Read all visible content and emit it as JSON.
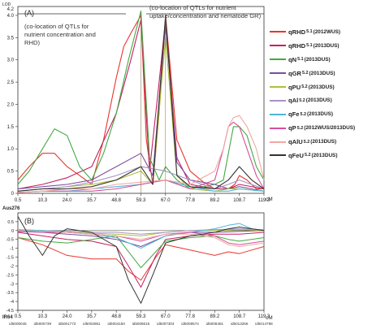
{
  "figure": {
    "panel_a_label": "(A)",
    "panel_b_label": "(B)",
    "annotation_left": [
      "(co-location of QTLs for",
      "nutrient concentration and",
      "RHD)"
    ],
    "annotation_right": [
      "(co-location of QTLs for nutrient",
      "uptake/concentration and nematode GR)"
    ],
    "top_y_label": "LOD",
    "bottom_y_label": "Aus276",
    "bottom_x_label": "IR64",
    "x_unit": "cM"
  },
  "legend": [
    {
      "base": "qRHD",
      "sub": "5.1",
      "year": "(2012WUS)",
      "color": "#e8352f"
    },
    {
      "base": "qRHD",
      "sub": "5.1",
      "year": "(2013DUS)",
      "color": "#c62060"
    },
    {
      "base": "qN",
      "sub": "5.1",
      "year": "(2013DUS)",
      "color": "#43a843"
    },
    {
      "base": "qGR",
      "sub": "5.2",
      "year": "(2013DUS)",
      "color": "#7b4f9d"
    },
    {
      "base": "qPU",
      "sub": "5.2",
      "year": "(2013DUS)",
      "color": "#a9c23a"
    },
    {
      "base": "qAl",
      "sub": "5.2",
      "year": "(2013DUS)",
      "color": "#a693c7"
    },
    {
      "base": "qFe",
      "sub": "5.2",
      "year": "(2013DUS)",
      "color": "#4ab7d6"
    },
    {
      "base": "qP",
      "sub": "5.2",
      "year": "(2012WUS/2013DUS)",
      "color": "#d84d9a"
    },
    {
      "base": "qAlU",
      "sub": "5.2",
      "year": "(2013DUS)",
      "color": "#f0a8a0"
    },
    {
      "base": "qFeU",
      "sub": "5.2",
      "year": "(2013DUS)",
      "color": "#333333"
    }
  ],
  "chart_data": [
    {
      "type": "line",
      "title": "(A)",
      "ylabel": "LOD",
      "xlabel": "cM",
      "xlim": [
        0.5,
        119.3
      ],
      "ylim": [
        0,
        4.2
      ],
      "x_ticks": [
        "0.5",
        "10.3",
        "24.0",
        "35.7",
        "48.8",
        "59.3",
        "67.0",
        "77.8",
        "89.2",
        "108.7",
        "119.3"
      ],
      "y_ticks": [
        "0",
        "0.5",
        "1.0",
        "1.5",
        "2.0",
        "2.5",
        "3.0",
        "3.5",
        "4.0"
      ],
      "y_top_label": "4.2",
      "series": [
        {
          "name": "qRHD 5.1 (2012WUS)",
          "color": "#e8352f",
          "x": [
            0.5,
            5,
            10.3,
            17,
            24,
            30,
            35.7,
            42,
            48.8,
            52,
            55,
            59.3,
            61,
            63,
            65,
            67,
            72,
            77.8,
            84,
            89.2,
            95,
            100,
            105,
            108.7,
            112,
            116,
            119.3
          ],
          "y": [
            0.3,
            0.6,
            0.9,
            0.9,
            0.6,
            0.4,
            0.2,
            1.2,
            2.6,
            3.3,
            3.6,
            4.0,
            1.2,
            0.2,
            1.8,
            4.0,
            1.2,
            0.5,
            0.25,
            0.1,
            0.15,
            0.1,
            0.2,
            0.4,
            0.3,
            0.1,
            0.1
          ]
        },
        {
          "name": "qRHD 5.1 (2013DUS)",
          "color": "#c62060",
          "x": [
            0.5,
            10.3,
            24,
            35.7,
            48.8,
            55,
            59.3,
            62,
            65,
            67,
            72,
            77.8,
            89.2,
            100,
            108.7,
            119.3
          ],
          "y": [
            0.1,
            0.2,
            0.35,
            0.6,
            1.8,
            3.0,
            3.9,
            0.5,
            2.5,
            3.9,
            0.8,
            0.2,
            0.1,
            0.1,
            0.2,
            0.1
          ]
        },
        {
          "name": "qN 5.1 (2013DUS)",
          "color": "#43a843",
          "x": [
            0.5,
            5,
            10.3,
            17,
            24,
            30,
            35.7,
            42,
            48.8,
            54,
            59.3,
            62,
            65,
            67,
            72,
            77.8,
            84,
            89.2,
            96,
            100,
            104,
            108.7,
            112,
            116,
            119.3
          ],
          "y": [
            0.2,
            0.5,
            1.0,
            1.45,
            1.3,
            0.6,
            0.3,
            0.9,
            1.8,
            3.0,
            4.1,
            0.8,
            0.3,
            0.6,
            0.3,
            0.1,
            0.15,
            0.2,
            0.3,
            0.9,
            1.5,
            1.5,
            1.3,
            0.6,
            0.3
          ]
        },
        {
          "name": "qGR 5.2 (2013DUS)",
          "color": "#7b4f9d",
          "x": [
            0.5,
            10.3,
            24,
            35.7,
            48.8,
            59.3,
            63,
            67,
            72,
            77.8,
            89.2,
            100,
            108.7,
            114,
            119.3
          ],
          "y": [
            0.1,
            0.15,
            0.2,
            0.3,
            0.6,
            0.9,
            0.4,
            3.8,
            0.7,
            0.3,
            0.2,
            0.1,
            0.15,
            0.1,
            0.05
          ]
        },
        {
          "name": "qPU 5.2 (2013DUS)",
          "color": "#a9c23a",
          "x": [
            0.5,
            10.3,
            24,
            35.7,
            48.8,
            59.3,
            63,
            67,
            72,
            77.8,
            89.2,
            100,
            108.7,
            119.3
          ],
          "y": [
            0.05,
            0.1,
            0.15,
            0.2,
            0.3,
            0.5,
            0.2,
            3.5,
            0.4,
            0.1,
            0.05,
            0.1,
            0.1,
            0.05
          ]
        },
        {
          "name": "qAl 5.2 (2013DUS)",
          "color": "#a693c7",
          "x": [
            0.5,
            10.3,
            24,
            35.7,
            48.8,
            59.3,
            67,
            77.8,
            89.2,
            100,
            108.7,
            119.3
          ],
          "y": [
            0.05,
            0.1,
            0.15,
            0.25,
            0.4,
            0.6,
            0.5,
            0.3,
            0.1,
            0.2,
            0.3,
            0.1
          ]
        },
        {
          "name": "qFe 5.2 (2013DUS)",
          "color": "#4ab7d6",
          "x": [
            0.5,
            10.3,
            24,
            35.7,
            48.8,
            59.3,
            67,
            77.8,
            89.2,
            100,
            108.7,
            119.3
          ],
          "y": [
            0.02,
            0.05,
            0.05,
            0.1,
            0.15,
            0.2,
            0.3,
            0.15,
            0.05,
            0.05,
            0.1,
            0.05
          ]
        },
        {
          "name": "qP 5.2 (2012WUS/2013DUS)",
          "color": "#d84d9a",
          "x": [
            0.5,
            10.3,
            24,
            35.7,
            48.8,
            59.3,
            67,
            77.8,
            89.2,
            96,
            100,
            104,
            108.7,
            112,
            116,
            119.3
          ],
          "y": [
            0.02,
            0.05,
            0.05,
            0.05,
            0.1,
            0.2,
            0.3,
            0.1,
            0.3,
            1.0,
            1.5,
            1.6,
            1.5,
            1.0,
            0.4,
            0.1
          ]
        },
        {
          "name": "qAlU 5.2 (2013DUS)",
          "color": "#f0a8a0",
          "x": [
            0.5,
            10.3,
            24,
            35.7,
            48.8,
            59.3,
            67,
            77.8,
            89.2,
            96,
            100,
            104,
            108.7,
            112,
            116,
            119.3
          ],
          "y": [
            0.02,
            0.05,
            0.1,
            0.1,
            0.2,
            0.25,
            0.3,
            0.2,
            0.5,
            1.0,
            1.5,
            1.7,
            1.75,
            1.5,
            1.0,
            0.3
          ]
        },
        {
          "name": "qFeU 5.2 (2013DUS)",
          "color": "#333333",
          "x": [
            0.5,
            10.3,
            24,
            35.7,
            48.8,
            59.3,
            63,
            67,
            72,
            77.8,
            89.2,
            100,
            108.7,
            114,
            119.3
          ],
          "y": [
            0.05,
            0.1,
            0.1,
            0.15,
            0.3,
            0.6,
            0.2,
            4.0,
            0.4,
            0.15,
            0.1,
            0.3,
            0.6,
            0.3,
            0.1
          ]
        }
      ]
    },
    {
      "type": "line",
      "title": "(B)",
      "ylabel": "Aus276",
      "xlabel": "cM",
      "xlim": [
        0.5,
        119.3
      ],
      "ylim": [
        -4.5,
        1.0
      ],
      "x_ticks": [
        "0.5",
        "10.3",
        "24.0",
        "35.7",
        "48.8",
        "59.3",
        "67.0",
        "77.8",
        "89.2",
        "108.7",
        "119.3"
      ],
      "y_ticks": [
        "0.5",
        "0",
        "-0.5",
        "-1",
        "-1.5",
        "-2",
        "-2.5",
        "-3",
        "-3.5",
        "-4",
        "-4.5"
      ],
      "markers": [
        "id5000045",
        "id5000739",
        "id5001772",
        "id5002861",
        "id5004150",
        "id5006615",
        "id5007304",
        "id5008574",
        "id5008481",
        "id5013256",
        "id5014788"
      ],
      "series": [
        {
          "name": "qRHD 5.1 (2012WUS)",
          "color": "#e8352f",
          "x": [
            0.5,
            10.3,
            24,
            35.7,
            48.8,
            54,
            59.3,
            64,
            67,
            77.8,
            89.2,
            100,
            108.7,
            114,
            119.3
          ],
          "y": [
            -0.4,
            -0.8,
            -1.4,
            -1.6,
            -1.6,
            -2.3,
            -2.8,
            -1.5,
            -0.8,
            -1.1,
            -1.4,
            -1.2,
            -1.3,
            -1.1,
            -0.9
          ]
        },
        {
          "name": "qRHD 5.1 (2013DUS)",
          "color": "#c62060",
          "x": [
            0.5,
            10.3,
            24,
            35.7,
            48.8,
            54,
            59.3,
            64,
            67,
            77.8,
            89.2,
            108.7,
            119.3
          ],
          "y": [
            -0.1,
            -0.3,
            -0.5,
            -0.6,
            -0.9,
            -2.0,
            -3.2,
            -1.4,
            -0.5,
            -0.3,
            -0.2,
            -0.2,
            -0.1
          ]
        },
        {
          "name": "qN 5.1 (2013DUS)",
          "color": "#43a843",
          "x": [
            0.5,
            10.3,
            24,
            35.7,
            48.8,
            59.3,
            67,
            77.8,
            89.2,
            100,
            108.7,
            119.3
          ],
          "y": [
            -0.4,
            -0.6,
            -0.7,
            -0.5,
            -0.3,
            -2.1,
            -0.6,
            -0.4,
            -0.3,
            -0.5,
            -0.6,
            -0.4
          ]
        },
        {
          "name": "qGR 5.2 (2013DUS)",
          "color": "#7b4f9d",
          "x": [
            0.5,
            10.3,
            24,
            35.7,
            48.8,
            59.3,
            67,
            77.8,
            89.2,
            108.7,
            119.3
          ],
          "y": [
            -0.05,
            -0.1,
            -0.2,
            -0.3,
            -0.5,
            -0.9,
            -0.3,
            -0.1,
            -0.1,
            -0.05,
            0.0
          ]
        },
        {
          "name": "qPU 5.2 (2013DUS)",
          "color": "#a9c23a",
          "x": [
            0.5,
            10.3,
            24,
            35.7,
            48.8,
            59.3,
            67,
            77.8,
            89.2,
            108.7,
            119.3
          ],
          "y": [
            0.0,
            -0.05,
            -0.1,
            -0.15,
            -0.2,
            -0.3,
            -0.1,
            0.0,
            0.0,
            0.05,
            0.0
          ]
        },
        {
          "name": "qAl 5.2 (2013DUS)",
          "color": "#a693c7",
          "x": [
            0.5,
            10.3,
            24,
            35.7,
            48.8,
            59.3,
            67,
            77.8,
            89.2,
            108.7,
            119.3
          ],
          "y": [
            0.05,
            0.0,
            -0.05,
            -0.1,
            -0.1,
            -0.2,
            -0.1,
            0.0,
            0.05,
            0.1,
            0.05
          ]
        },
        {
          "name": "qFe 5.2 (2013DUS)",
          "color": "#4ab7d6",
          "x": [
            0.5,
            10.3,
            24,
            35.7,
            48.8,
            59.3,
            67,
            77.8,
            89.2,
            100,
            108.7,
            114,
            119.3
          ],
          "y": [
            0.05,
            0.0,
            -0.1,
            -0.2,
            -0.4,
            -1.0,
            -0.3,
            -0.1,
            0.1,
            0.3,
            0.4,
            0.1,
            0.0
          ]
        },
        {
          "name": "qP 5.2 (2012WUS/2013DUS)",
          "color": "#d84d9a",
          "x": [
            0.5,
            10.3,
            24,
            35.7,
            48.8,
            59.3,
            67,
            77.8,
            89.2,
            100,
            108.7,
            119.3
          ],
          "y": [
            0.0,
            -0.1,
            -0.1,
            -0.2,
            -0.3,
            -0.6,
            -0.2,
            -0.1,
            -0.3,
            -0.7,
            -0.8,
            -0.6
          ]
        },
        {
          "name": "qAlU 5.2 (2013DUS)",
          "color": "#f0a8a0",
          "x": [
            0.5,
            10.3,
            24,
            35.7,
            48.8,
            59.3,
            67,
            77.8,
            89.2,
            100,
            108.7,
            119.3
          ],
          "y": [
            0.0,
            -0.05,
            -0.1,
            -0.2,
            -0.3,
            -0.5,
            -0.2,
            -0.2,
            -0.4,
            -0.8,
            -0.9,
            -0.7
          ]
        },
        {
          "name": "qFeU 5.2 (2013DUS)",
          "color": "#333333",
          "x": [
            0.5,
            5,
            10.3,
            17,
            24,
            35.7,
            48.8,
            54,
            59.3,
            63,
            67,
            77.8,
            89.2,
            100,
            108.7,
            119.3
          ],
          "y": [
            0.8,
            -0.3,
            -1.4,
            -0.3,
            0.1,
            -0.1,
            -0.9,
            -2.8,
            -4.1,
            -2.5,
            -0.7,
            -0.3,
            -0.1,
            0.1,
            0.2,
            0.0
          ]
        }
      ]
    }
  ]
}
